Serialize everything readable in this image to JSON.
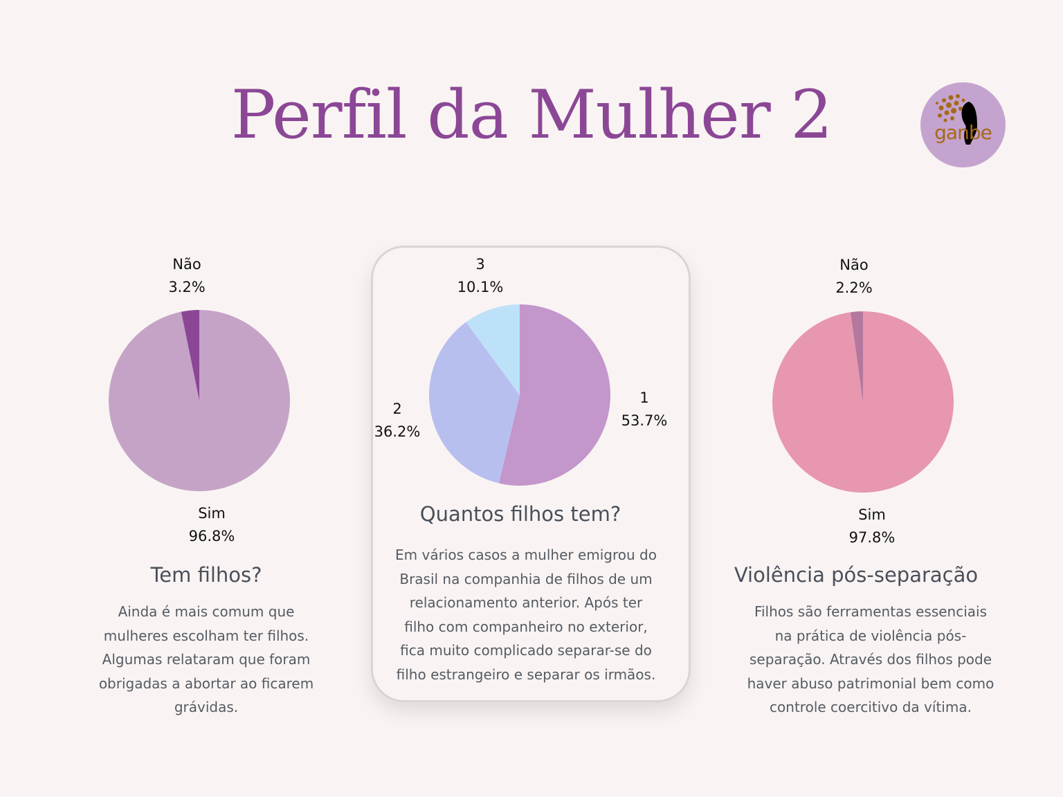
{
  "title": "Perfil da Mulher 2",
  "logo": {
    "text": "ganbe",
    "bg": "#c5a3cf",
    "accent": "#a56a18"
  },
  "chart_data": [
    {
      "type": "pie",
      "title": "Tem filhos?",
      "slices": [
        {
          "label": "Sim",
          "value": 96.8,
          "pct": "96.8%",
          "color": "#c5a3c6"
        },
        {
          "label": "Não",
          "value": 3.2,
          "pct": "3.2%",
          "color": "#8b4796"
        }
      ]
    },
    {
      "type": "pie",
      "title": "Quantos filhos tem?",
      "slices": [
        {
          "label": "1",
          "value": 53.7,
          "pct": "53.7%",
          "color": "#c396cc"
        },
        {
          "label": "2",
          "value": 36.2,
          "pct": "36.2%",
          "color": "#b7bfee"
        },
        {
          "label": "3",
          "value": 10.1,
          "pct": "10.1%",
          "color": "#bde1f8"
        }
      ]
    },
    {
      "type": "pie",
      "title": "Violência pós-separação",
      "slices": [
        {
          "label": "Sim",
          "value": 97.8,
          "pct": "97.8%",
          "color": "#e797ae"
        },
        {
          "label": "Não",
          "value": 2.2,
          "pct": "2.2%",
          "color": "#b4789e"
        }
      ]
    }
  ],
  "descriptions": [
    [
      "Ainda é mais comum que",
      "mulheres escolham ter filhos.",
      "Algumas relataram que foram",
      "obrigadas a abortar ao ficarem",
      "grávidas."
    ],
    [
      "Em vários casos a mulher emigrou do",
      "Brasil na companhia de filhos de um",
      "relacionamento anterior. Após ter",
      "filho com companheiro no exterior,",
      "fica muito complicado separar-se do",
      "filho estrangeiro e separar os irmãos."
    ],
    [
      "Filhos são ferramentas essenciais",
      "na prática de violência pós-",
      "separação. Através dos filhos pode",
      "haver abuso patrimonial bem como",
      "controle coercitivo da vítima."
    ]
  ]
}
